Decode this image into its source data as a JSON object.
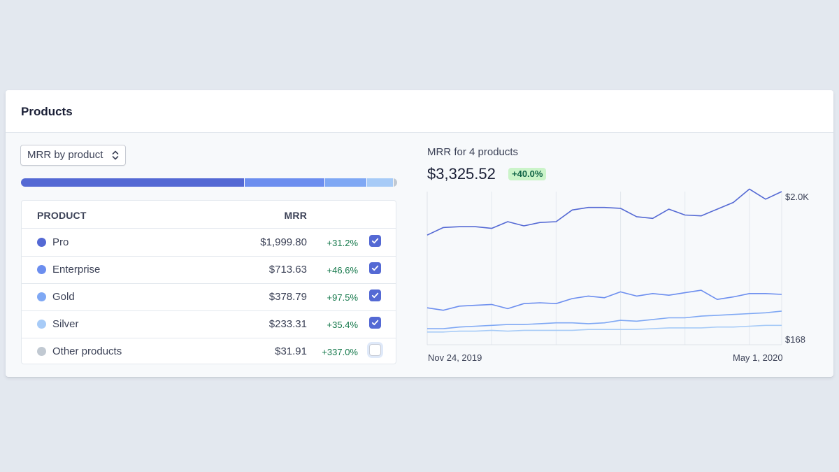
{
  "card": {
    "title": "Products"
  },
  "selector": {
    "label": "MRR by product",
    "icon": "chevron-up-down-icon"
  },
  "stack_bar": [
    {
      "name": "Pro",
      "value": 1999.8,
      "color": "#5469d4"
    },
    {
      "name": "Enterprise",
      "value": 713.63,
      "color": "#6c8eef"
    },
    {
      "name": "Gold",
      "value": 378.79,
      "color": "#7fa8f4"
    },
    {
      "name": "Silver",
      "value": 233.31,
      "color": "#a7cbf7"
    },
    {
      "name": "Other products",
      "value": 31.91,
      "color": "#c1c9d2"
    }
  ],
  "table": {
    "headers": {
      "product": "PRODUCT",
      "mrr": "MRR"
    },
    "rows": [
      {
        "name": "Pro",
        "mrr": "$1,999.80",
        "change": "+31.2%",
        "color": "#5469d4",
        "checked": true
      },
      {
        "name": "Enterprise",
        "mrr": "$713.63",
        "change": "+46.6%",
        "color": "#6c8eef",
        "checked": true
      },
      {
        "name": "Gold",
        "mrr": "$378.79",
        "change": "+97.5%",
        "color": "#7fa8f4",
        "checked": true
      },
      {
        "name": "Silver",
        "mrr": "$233.31",
        "change": "+35.4%",
        "color": "#a7cbf7",
        "checked": true
      },
      {
        "name": "Other products",
        "mrr": "$31.91",
        "change": "+337.0%",
        "color": "#c1c9d2",
        "checked": false
      }
    ]
  },
  "chart": {
    "title": "MRR for 4 products",
    "total": "$3,325.52",
    "change": "+40.0%",
    "y_max_label": "$2.0K",
    "y_min_label": "$168",
    "x_start_label": "Nov 24, 2019",
    "x_end_label": "May 1, 2020"
  },
  "chart_data": {
    "type": "line",
    "title": "MRR for 4 products",
    "xlabel": "",
    "ylabel": "",
    "x": [
      "Nov 24, 2019",
      "",
      "",
      "",
      "",
      "",
      "",
      "",
      "",
      "",
      "",
      "",
      "",
      "",
      "",
      "",
      "",
      "",
      "",
      "",
      "",
      "",
      "May 1, 2020"
    ],
    "ylim": [
      168,
      2000
    ],
    "y_tick_labels": [
      "$2.0K",
      "$168"
    ],
    "grid": true,
    "series": [
      {
        "name": "Pro",
        "color": "#5469d4",
        "values": [
          1480,
          1570,
          1580,
          1580,
          1560,
          1640,
          1590,
          1630,
          1640,
          1780,
          1810,
          1810,
          1800,
          1700,
          1680,
          1790,
          1720,
          1710,
          1790,
          1870,
          2030,
          1910,
          2000
        ]
      },
      {
        "name": "Enterprise",
        "color": "#6c8eef",
        "values": [
          610,
          580,
          630,
          640,
          650,
          600,
          660,
          670,
          660,
          720,
          750,
          730,
          800,
          750,
          780,
          760,
          790,
          820,
          710,
          740,
          780,
          780,
          770
        ]
      },
      {
        "name": "Gold",
        "color": "#7fa8f4",
        "values": [
          360,
          360,
          380,
          390,
          400,
          410,
          410,
          420,
          430,
          430,
          420,
          430,
          460,
          450,
          470,
          490,
          490,
          510,
          520,
          530,
          540,
          550,
          570
        ]
      },
      {
        "name": "Silver",
        "color": "#a7cbf7",
        "values": [
          320,
          320,
          330,
          330,
          340,
          330,
          340,
          340,
          340,
          340,
          350,
          350,
          350,
          350,
          360,
          370,
          370,
          370,
          380,
          380,
          390,
          400,
          400
        ]
      }
    ]
  }
}
